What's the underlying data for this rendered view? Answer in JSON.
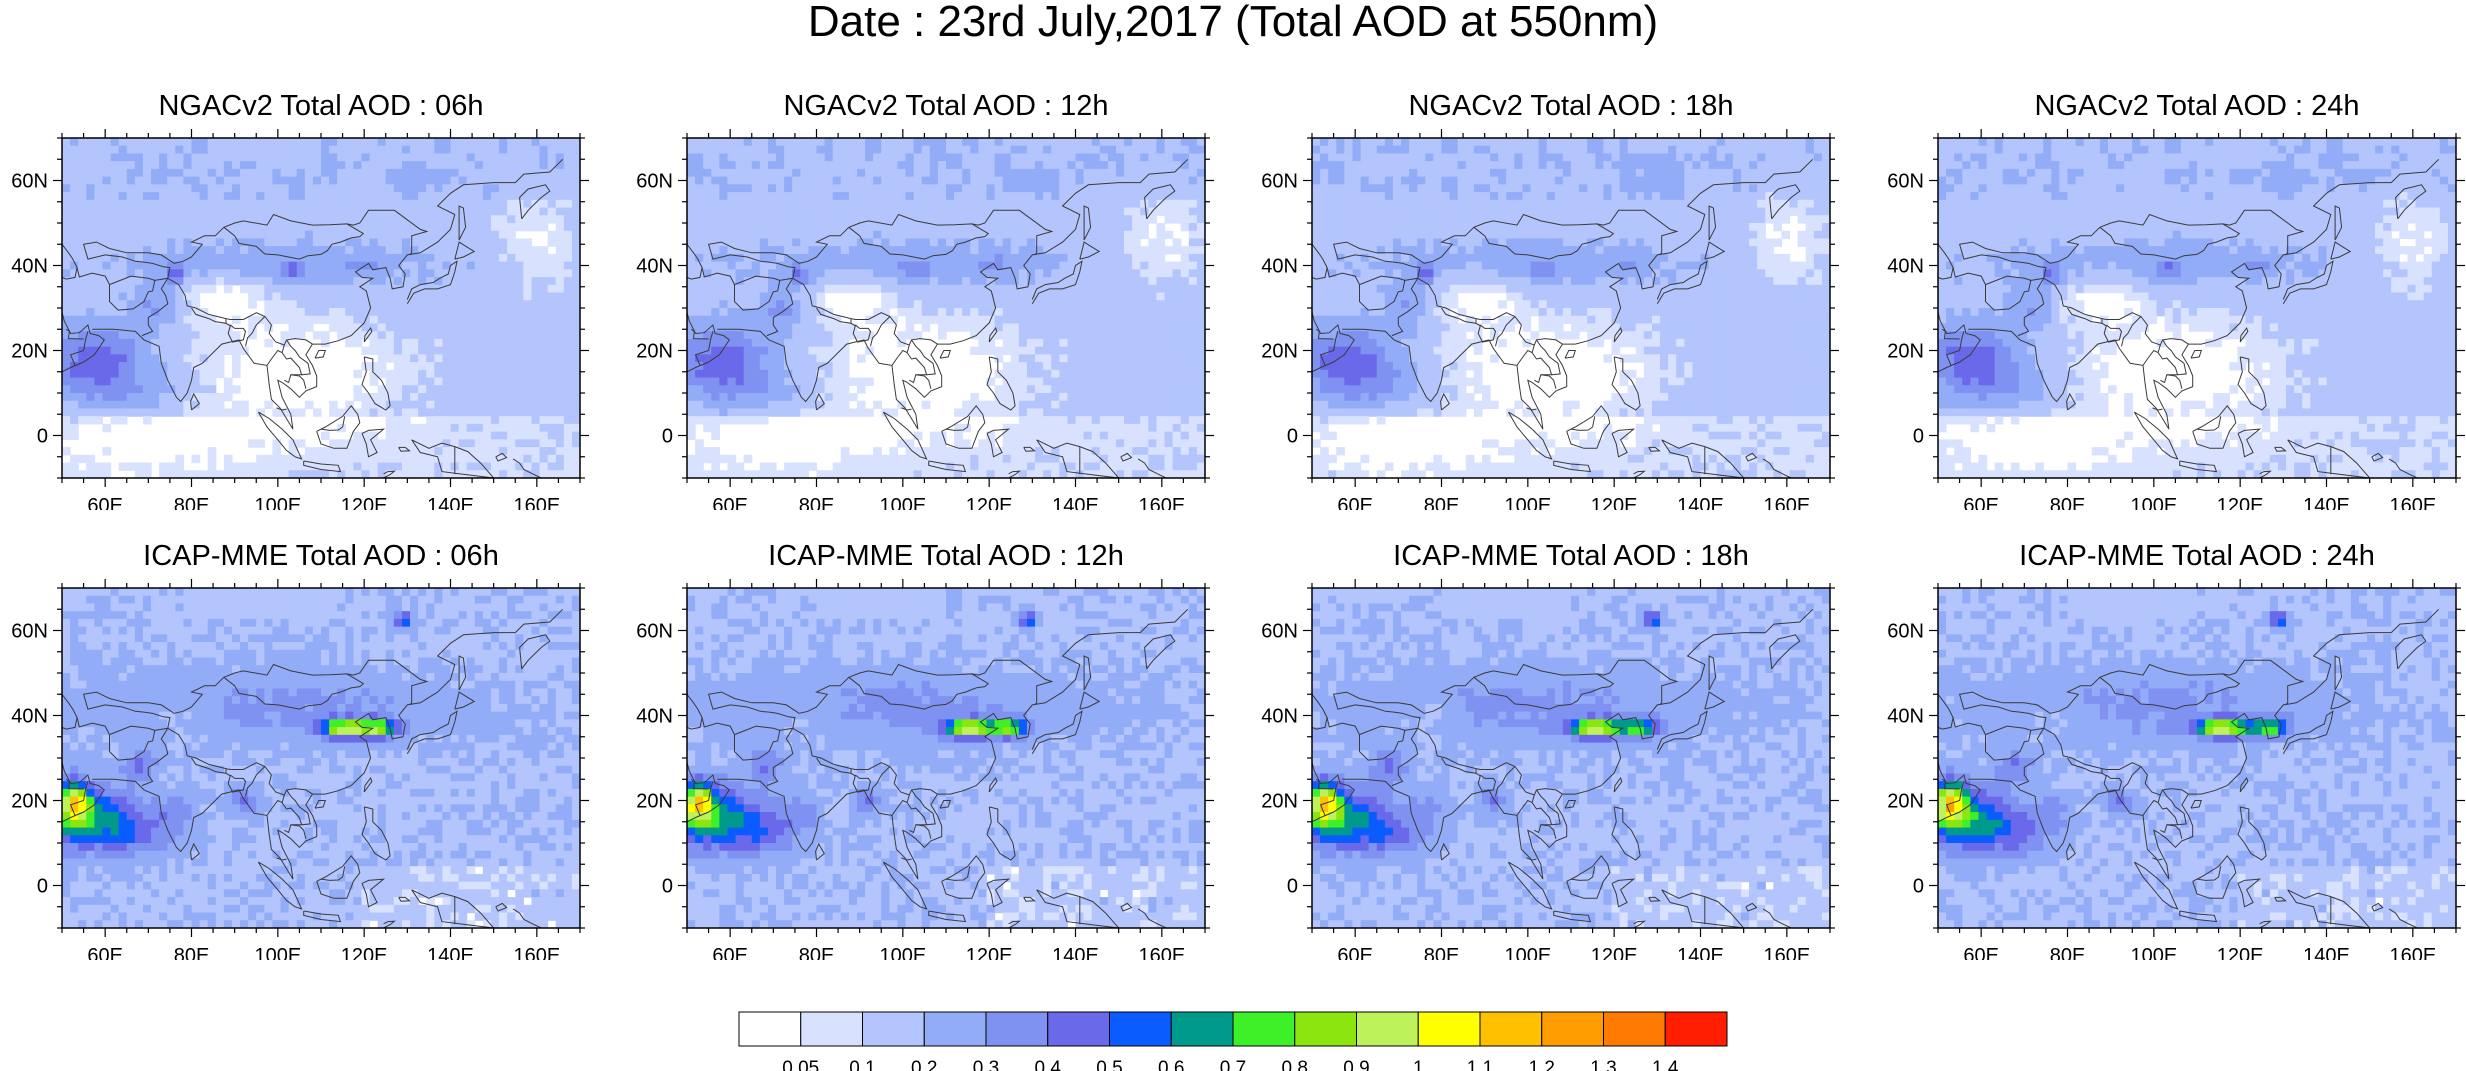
{
  "title": "Date : 23rd July,2017 (Total AOD at 550nm)",
  "panels": [
    {
      "title": "NGACv2 Total AOD : 06h",
      "model": "ngac",
      "variant": 0
    },
    {
      "title": "NGACv2 Total AOD : 12h",
      "model": "ngac",
      "variant": 1
    },
    {
      "title": "NGACv2 Total AOD : 18h",
      "model": "ngac",
      "variant": 2
    },
    {
      "title": "NGACv2 Total AOD : 24h",
      "model": "ngac",
      "variant": 3
    },
    {
      "title": "ICAP-MME Total AOD : 06h",
      "model": "icap",
      "variant": 0
    },
    {
      "title": "ICAP-MME Total AOD : 12h",
      "model": "icap",
      "variant": 1
    },
    {
      "title": "ICAP-MME Total AOD : 18h",
      "model": "icap",
      "variant": 2
    },
    {
      "title": "ICAP-MME Total AOD : 24h",
      "model": "icap",
      "variant": 3
    }
  ],
  "map": {
    "lon_range": [
      50,
      170
    ],
    "lat_range": [
      -10,
      70
    ],
    "lon_ticks": [
      60,
      80,
      100,
      120,
      140,
      160
    ],
    "lon_tick_labels": [
      "60E",
      "80E",
      "100E",
      "120E",
      "140E",
      "160E"
    ],
    "lat_ticks": [
      0,
      20,
      40,
      60
    ],
    "lat_tick_labels": [
      "0",
      "20N",
      "40N",
      "60N"
    ]
  },
  "colorbar": {
    "labels": [
      "0.05",
      "0.1",
      "0.2",
      "0.3",
      "0.4",
      "0.5",
      "0.6",
      "0.7",
      "0.8",
      "0.9",
      "1",
      "1.1",
      "1.2",
      "1.3",
      "1.4"
    ],
    "colors": [
      "#ffffff",
      "#d8e2ff",
      "#b3c5fc",
      "#92acf8",
      "#7f92f2",
      "#6a69ea",
      "#0a5cff",
      "#009a8c",
      "#3ef028",
      "#8ae60e",
      "#bdf25a",
      "#ffff00",
      "#ffc000",
      "#ff9d00",
      "#ff7a00",
      "#ff1e00"
    ]
  }
}
